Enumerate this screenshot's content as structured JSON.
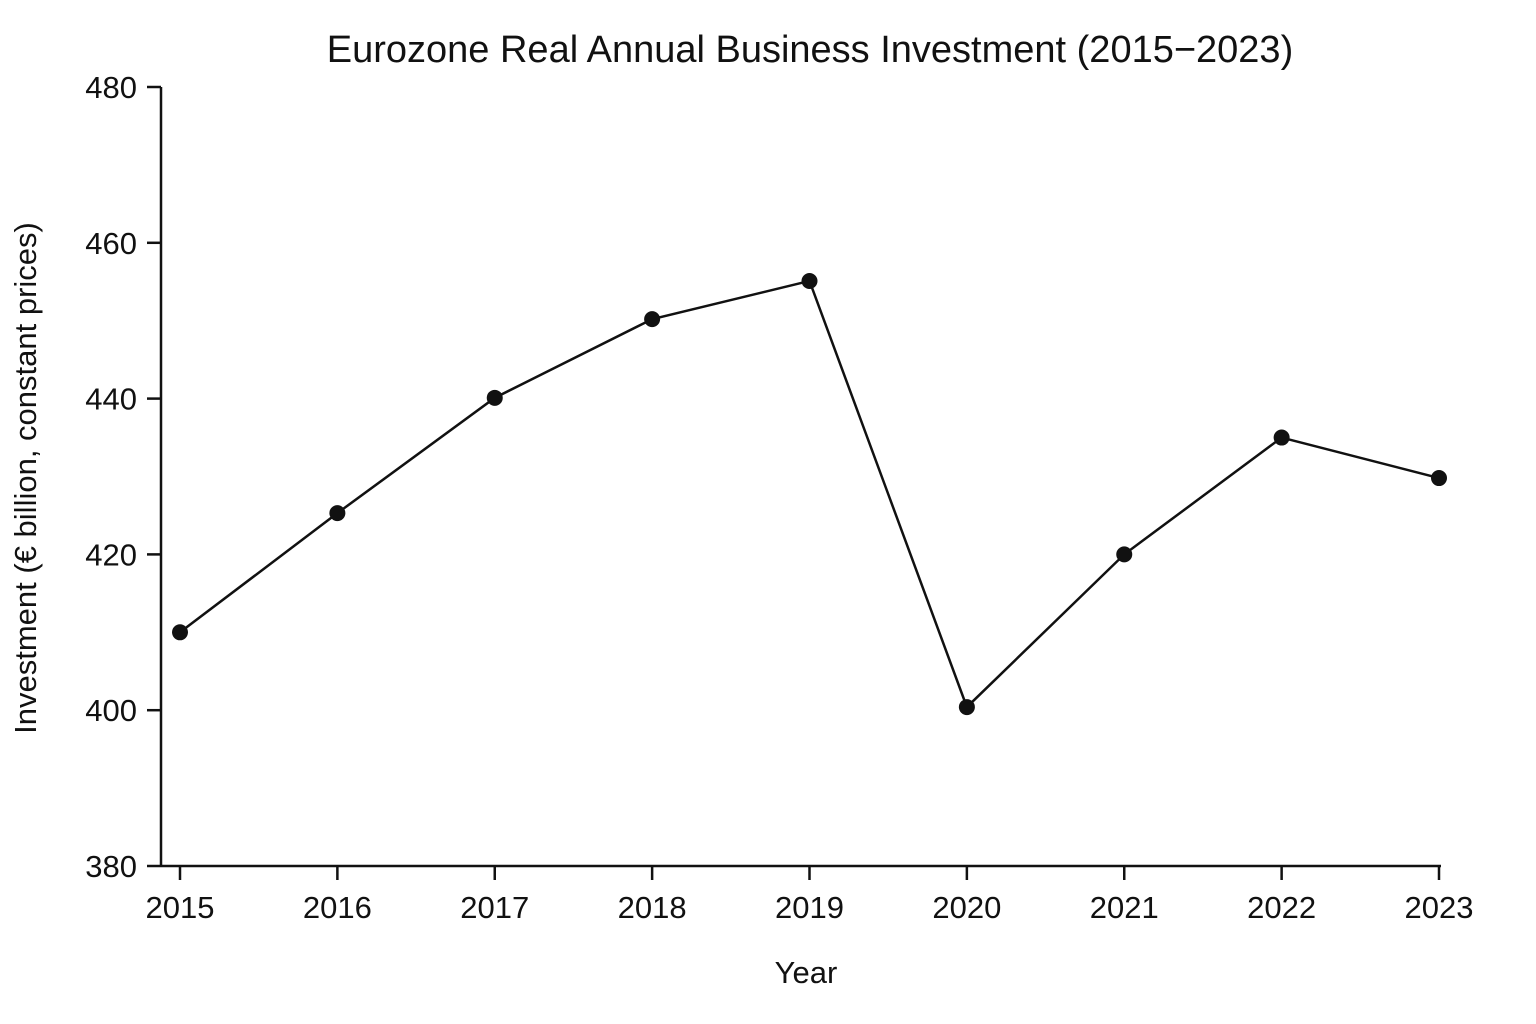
{
  "chart_data": {
    "type": "line",
    "title": "Eurozone Real Annual Business Investment (2015−2023)",
    "xlabel": "Year",
    "ylabel": "Investment (€ billion, constant prices)",
    "categories": [
      "2015",
      "2016",
      "2017",
      "2018",
      "2019",
      "2020",
      "2021",
      "2022",
      "2023"
    ],
    "series": [
      {
        "values": [
          410,
          425.3,
          440.1,
          450.2,
          455.1,
          400.4,
          420,
          435,
          429.8
        ]
      }
    ],
    "ylim": [
      380,
      480
    ],
    "yticks": [
      "380",
      "400",
      "420",
      "440",
      "460",
      "480"
    ],
    "grid": false,
    "legend": "none",
    "colors": {
      "line": "#111111",
      "marker": "#111111"
    }
  }
}
